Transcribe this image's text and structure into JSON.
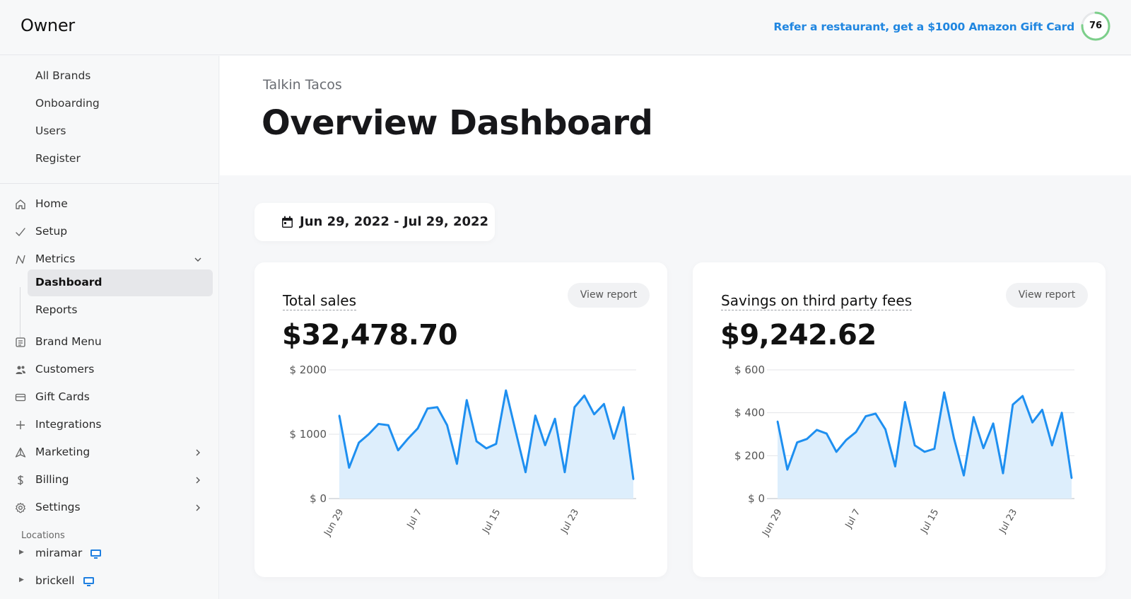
{
  "header": {
    "logo": "Owner",
    "refer_text": "Refer a restaurant, get a $1000 Amazon Gift Card",
    "score": "76",
    "score_fraction": 0.76,
    "accent": "#2086e0",
    "score_color": "#7ccf8a"
  },
  "sidebar": {
    "brand_items": [
      "All Brands",
      "Onboarding",
      "Users",
      "Register"
    ],
    "nav": [
      {
        "label": "Home",
        "icon": "home-icon"
      },
      {
        "label": "Setup",
        "icon": "check-icon"
      },
      {
        "label": "Metrics",
        "icon": "metrics-icon",
        "expanded": true
      },
      {
        "label": "Brand Menu",
        "icon": "menu-icon"
      },
      {
        "label": "Customers",
        "icon": "customers-icon"
      },
      {
        "label": "Gift Cards",
        "icon": "gift-card-icon"
      },
      {
        "label": "Integrations",
        "icon": "plus-icon"
      },
      {
        "label": "Marketing",
        "icon": "marketing-icon"
      },
      {
        "label": "Billing",
        "icon": "dollar-icon"
      },
      {
        "label": "Settings",
        "icon": "gear-icon"
      }
    ],
    "metrics_sub": [
      {
        "label": "Dashboard",
        "active": true
      },
      {
        "label": "Reports",
        "active": false
      }
    ],
    "locations_title": "Locations",
    "locations": [
      "miramar",
      "brickell"
    ]
  },
  "main": {
    "brand_name": "Talkin Tacos",
    "title": "Overview Dashboard",
    "date_range": "Jun 29, 2022 - Jul 29, 2022",
    "view_report_label": "View report"
  },
  "cards": [
    {
      "title": "Total sales",
      "value": "$32,478.70"
    },
    {
      "title": "Savings on third party fees",
      "value": "$9,242.62"
    }
  ],
  "chart_data": [
    {
      "type": "area",
      "title": "Total sales",
      "x_ticks": [
        "Jun 29",
        "Jul 7",
        "Jul 15",
        "Jul 23"
      ],
      "x_tick_index": [
        0,
        8,
        16,
        24
      ],
      "y_ticks": [
        0,
        1000,
        2000
      ],
      "y_tick_labels": [
        "$ 0",
        "$ 1000",
        "$ 2000"
      ],
      "ylim": [
        0,
        2000
      ],
      "values": [
        1290,
        480,
        870,
        1000,
        1160,
        1140,
        750,
        930,
        1090,
        1400,
        1420,
        1140,
        540,
        1530,
        890,
        780,
        850,
        1680,
        1040,
        410,
        1290,
        830,
        1240,
        410,
        1420,
        1600,
        1310,
        1470,
        930,
        1420,
        300
      ],
      "color": "#1e8ff0",
      "fill": "#ddeefc"
    },
    {
      "type": "area",
      "title": "Savings on third party fees",
      "x_ticks": [
        "Jun 29",
        "Jul 7",
        "Jul 15",
        "Jul 23"
      ],
      "x_tick_index": [
        0,
        8,
        16,
        24
      ],
      "y_ticks": [
        0,
        200,
        400,
        600
      ],
      "y_tick_labels": [
        "$ 0",
        "$ 200",
        "$ 400",
        "$ 600"
      ],
      "ylim": [
        0,
        600
      ],
      "values": [
        360,
        135,
        262,
        278,
        320,
        303,
        218,
        273,
        310,
        384,
        396,
        323,
        150,
        450,
        248,
        218,
        232,
        495,
        280,
        108,
        380,
        235,
        350,
        118,
        438,
        478,
        355,
        414,
        248,
        400,
        95
      ],
      "color": "#1e8ff0",
      "fill": "#ddeefc"
    }
  ]
}
